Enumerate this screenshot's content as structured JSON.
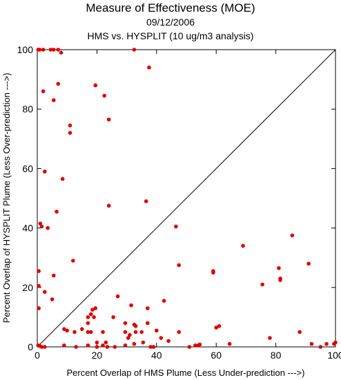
{
  "chart_data": {
    "type": "scatter",
    "title": "Measure of Effectiveness (MOE)",
    "subtitle_lines": [
      "09/12/2006",
      "HMS vs. HYSPLIT  (10 ug/m3 analysis)"
    ],
    "xlabel": "Percent Overlap of HMS Plume (Less Under-prediction --->)",
    "ylabel": "Percent Overlap of HYSPLIT Plume (Less Over-prediction --->)",
    "xlim": [
      0,
      100
    ],
    "ylim": [
      0,
      100
    ],
    "xticks": [
      0,
      20,
      40,
      60,
      80,
      100
    ],
    "yticks": [
      0,
      20,
      40,
      60,
      80,
      100
    ],
    "grid": false,
    "reference_line": {
      "from": [
        0,
        0
      ],
      "to": [
        100,
        100
      ]
    },
    "marker_color": "#e00000",
    "points": [
      [
        0.3,
        100
      ],
      [
        0.8,
        100
      ],
      [
        2,
        100
      ],
      [
        4.5,
        100
      ],
      [
        5.5,
        100
      ],
      [
        7,
        100
      ],
      [
        8,
        99
      ],
      [
        32.5,
        100
      ],
      [
        37.5,
        94
      ],
      [
        7,
        88.5
      ],
      [
        19.5,
        88
      ],
      [
        22.5,
        84.5
      ],
      [
        2,
        86
      ],
      [
        5.5,
        83
      ],
      [
        24,
        76.5
      ],
      [
        11,
        74.5
      ],
      [
        11,
        72
      ],
      [
        2.5,
        59
      ],
      [
        8.5,
        56.5
      ],
      [
        24,
        47.5
      ],
      [
        36.5,
        49
      ],
      [
        6.5,
        45.5
      ],
      [
        1,
        41.5
      ],
      [
        1.5,
        40.5
      ],
      [
        3.5,
        40
      ],
      [
        46.5,
        40.5
      ],
      [
        69,
        34
      ],
      [
        85.5,
        37.5
      ],
      [
        12,
        29
      ],
      [
        47.5,
        27.5
      ],
      [
        91,
        28
      ],
      [
        0.5,
        25.5
      ],
      [
        5.5,
        24
      ],
      [
        59,
        25.5
      ],
      [
        59,
        25
      ],
      [
        81,
        26.5
      ],
      [
        0.5,
        20.5
      ],
      [
        75.5,
        21
      ],
      [
        81.5,
        22.5
      ],
      [
        81.5,
        23
      ],
      [
        2.5,
        18.5
      ],
      [
        5,
        16
      ],
      [
        27,
        17
      ],
      [
        42.5,
        15.5
      ],
      [
        0.5,
        13
      ],
      [
        19.5,
        13
      ],
      [
        18.5,
        12.5
      ],
      [
        31.5,
        14
      ],
      [
        37,
        13
      ],
      [
        18,
        11
      ],
      [
        17,
        10
      ],
      [
        19,
        10
      ],
      [
        17,
        8
      ],
      [
        25.5,
        10
      ],
      [
        32.5,
        7.5
      ],
      [
        33,
        7
      ],
      [
        29.5,
        8
      ],
      [
        37,
        8
      ],
      [
        61,
        7
      ],
      [
        60,
        6.5
      ],
      [
        9,
        6
      ],
      [
        10,
        5.5
      ],
      [
        12.5,
        5
      ],
      [
        15,
        6
      ],
      [
        17,
        5
      ],
      [
        18,
        5
      ],
      [
        22,
        5
      ],
      [
        29.5,
        5
      ],
      [
        31,
        4
      ],
      [
        33,
        5
      ],
      [
        35,
        5
      ],
      [
        40,
        5.5
      ],
      [
        47.5,
        5
      ],
      [
        88,
        5
      ],
      [
        78,
        3
      ],
      [
        30.5,
        3
      ],
      [
        41.5,
        3
      ],
      [
        44,
        2
      ],
      [
        35.5,
        1.5
      ],
      [
        32.5,
        1
      ],
      [
        20,
        1.5
      ],
      [
        23,
        1.5
      ],
      [
        64.5,
        1
      ],
      [
        92,
        1
      ],
      [
        97,
        1
      ],
      [
        99.5,
        1
      ],
      [
        100,
        1.5
      ],
      [
        0.3,
        0.5
      ],
      [
        0.8,
        0.3
      ],
      [
        1.5,
        0
      ],
      [
        2.5,
        0
      ],
      [
        9,
        0.5
      ],
      [
        13,
        0
      ],
      [
        17,
        0.5
      ],
      [
        20,
        0
      ],
      [
        22,
        0.5
      ],
      [
        23.5,
        0
      ],
      [
        26,
        0
      ],
      [
        29.5,
        0.5
      ],
      [
        38,
        0
      ],
      [
        39,
        0
      ],
      [
        51,
        0
      ],
      [
        53,
        0.5
      ],
      [
        54,
        0.5
      ],
      [
        54.5,
        0.8
      ],
      [
        95,
        0
      ]
    ]
  }
}
